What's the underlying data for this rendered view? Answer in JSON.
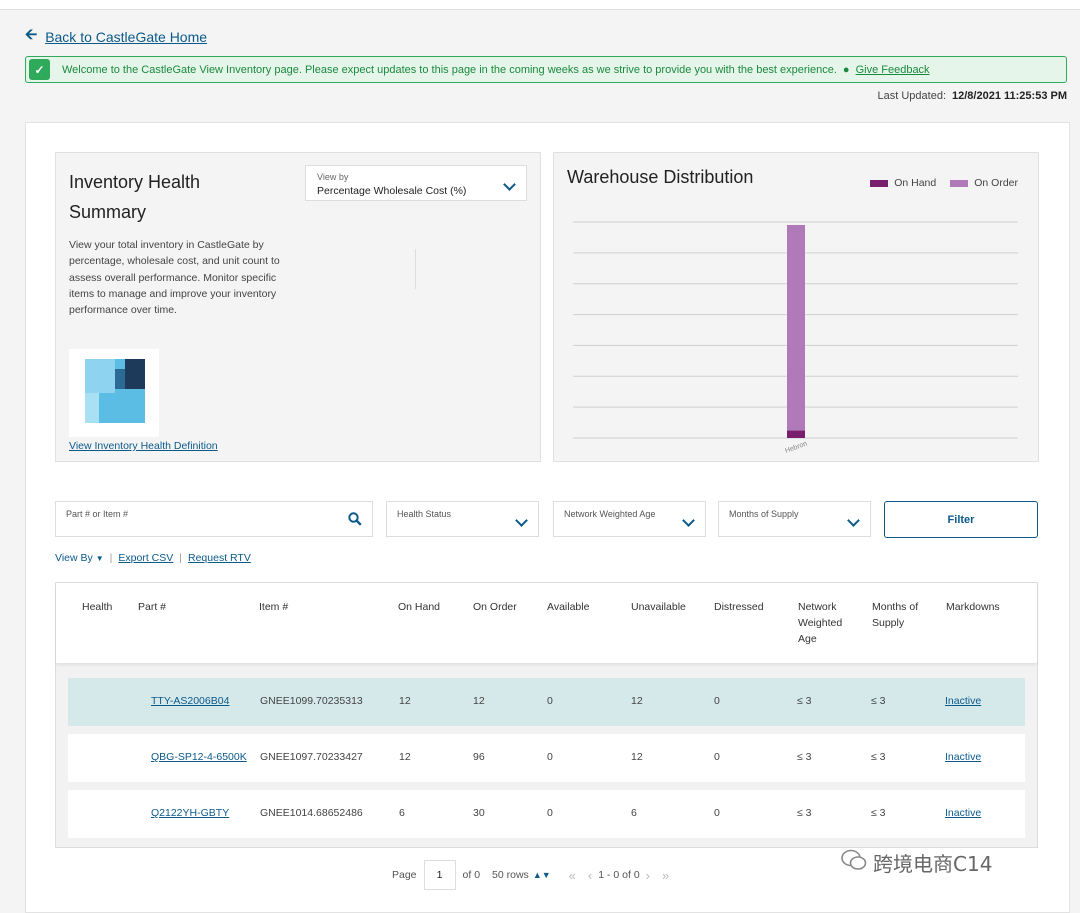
{
  "back_link": "Back to CastleGate Home",
  "banner": {
    "message": "Welcome to the CastleGate View Inventory page. Please expect updates to this page in the coming weeks as we strive to provide you with the best experience.",
    "feedback": "Give Feedback"
  },
  "last_updated": {
    "label": "Last Updated:",
    "value": "12/8/2021 11:25:53 PM"
  },
  "inventory_health": {
    "title": "Inventory Health Summary",
    "view_by_label": "View by",
    "view_by_value": "Percentage Wholesale Cost (%)",
    "description": "View your total inventory in CastleGate by percentage, wholesale cost, and unit count to assess overall performance. Monitor specific items to manage and improve your inventory performance over time.",
    "definition_link": "View Inventory Health Definition"
  },
  "warehouse": {
    "title": "Warehouse Distribution",
    "legend": [
      {
        "name": "On Hand",
        "color": "#7a1f6e"
      },
      {
        "name": "On Order",
        "color": "#b07ab8"
      }
    ]
  },
  "chart_data": {
    "type": "bar",
    "stacked": true,
    "title": "Warehouse Distribution",
    "categories": [
      "Hebron"
    ],
    "series": [
      {
        "name": "On Hand",
        "values": [
          5
        ]
      },
      {
        "name": "On Order",
        "values": [
          138
        ]
      }
    ],
    "ylim": [
      0,
      145
    ],
    "grid": true,
    "legend_position": "top-right"
  },
  "filters": {
    "search_placeholder": "Part # or Item #",
    "health_status": "Health Status",
    "network_weighted_age": "Network Weighted Age",
    "months_of_supply": "Months of Supply",
    "filter_button": "Filter"
  },
  "actions": {
    "view_by": "View By",
    "export_csv": "Export CSV",
    "request_rtv": "Request RTV"
  },
  "table": {
    "headers": [
      "Health",
      "Part #",
      "Item #",
      "On Hand",
      "On Order",
      "Available",
      "Unavailable",
      "Distressed",
      "Network Weighted Age",
      "Months of Supply",
      "Markdowns"
    ],
    "rows": [
      {
        "part": "TTY-AS2006B04",
        "item": "GNEE1099.70235313",
        "on_hand": "12",
        "on_order": "12",
        "available": "0",
        "unavailable": "12",
        "distressed": "0",
        "nwa": "≤ 3",
        "mos": "≤ 3",
        "markdowns": "Inactive"
      },
      {
        "part": "QBG-SP12-4-6500K",
        "item": "GNEE1097.70233427",
        "on_hand": "12",
        "on_order": "96",
        "available": "0",
        "unavailable": "12",
        "distressed": "0",
        "nwa": "≤ 3",
        "mos": "≤ 3",
        "markdowns": "Inactive"
      },
      {
        "part": "Q2122YH-GBTY",
        "item": "GNEE1014.68652486",
        "on_hand": "6",
        "on_order": "30",
        "available": "0",
        "unavailable": "6",
        "distressed": "0",
        "nwa": "≤ 3",
        "mos": "≤ 3",
        "markdowns": "Inactive"
      }
    ]
  },
  "pager": {
    "page_label": "Page",
    "page_value": "1",
    "of_total": "of 0",
    "rows_per_page": "50 rows",
    "range": "1 - 0 of 0"
  },
  "watermark": "跨境电商C14"
}
